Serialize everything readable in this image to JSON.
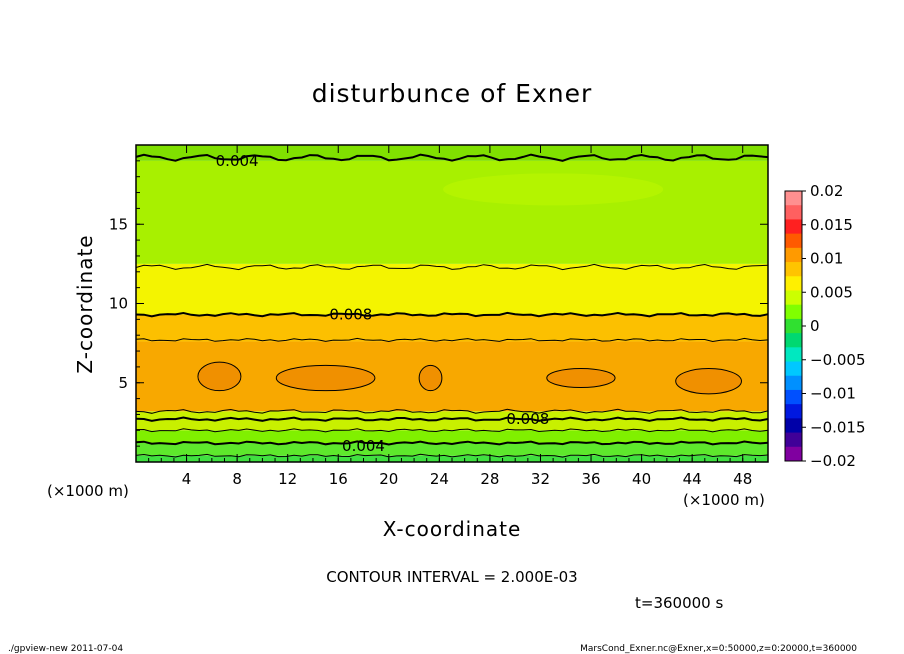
{
  "chart_data": {
    "type": "heatmap",
    "title": "disturbunce of Exner",
    "xlabel": "X-coordinate",
    "ylabel": "Z-coordinate",
    "x_unit": "(×1000 m)",
    "y_unit": "(×1000 m)",
    "xlim": [
      0,
      50
    ],
    "ylim": [
      0,
      20
    ],
    "x_ticks": [
      4,
      8,
      12,
      16,
      20,
      24,
      28,
      32,
      36,
      40,
      44,
      48
    ],
    "y_ticks": [
      5,
      10,
      15
    ],
    "colorbar": {
      "ticks": [
        "0.02",
        "0.015",
        "0.01",
        "0.005",
        "0",
        "−0.005",
        "−0.01",
        "−0.015",
        "−0.02"
      ],
      "levels": [
        0.02,
        0.015,
        0.01,
        0.005,
        0,
        -0.005,
        -0.01,
        -0.015,
        -0.02
      ],
      "colors": [
        "#ff9090",
        "#ff6060",
        "#ff2020",
        "#ff5a00",
        "#ff9a00",
        "#ffc400",
        "#fff000",
        "#ccff00",
        "#80ff00",
        "#30e030",
        "#00d870",
        "#00e8c0",
        "#00c8ff",
        "#0090ff",
        "#0050ff",
        "#0018e0",
        "#0000a8",
        "#400098",
        "#8000a0"
      ]
    },
    "bands": [
      {
        "z": [
          0.0,
          0.4
        ],
        "value": 0.002,
        "color": "#40e040"
      },
      {
        "z": [
          0.4,
          1.2
        ],
        "value": 0.003,
        "color": "#5ee82c"
      },
      {
        "z": [
          1.2,
          2.0
        ],
        "value": 0.004,
        "color": "#80f000"
      },
      {
        "z": [
          2.0,
          3.2
        ],
        "value": 0.007,
        "color": "#c8f000"
      },
      {
        "z": [
          3.2,
          7.6
        ],
        "value": 0.009,
        "color": "#f8a800"
      },
      {
        "z": [
          7.6,
          9.3
        ],
        "value": 0.0085,
        "color": "#fcc000"
      },
      {
        "z": [
          9.3,
          12.5
        ],
        "value": 0.007,
        "color": "#f4f400"
      },
      {
        "z": [
          12.5,
          19.0
        ],
        "value": 0.005,
        "color": "#a8f000"
      },
      {
        "z": [
          19.0,
          20.0
        ],
        "value": 0.004,
        "color": "#80e000"
      }
    ],
    "contour_labels": [
      {
        "text": "0.004",
        "x": 8,
        "z": 19
      },
      {
        "text": "0.008",
        "x": 17,
        "z": 9.3
      },
      {
        "text": "0.008",
        "x": 31,
        "z": 2.7
      },
      {
        "text": "0.004",
        "x": 18,
        "z": 1.0
      }
    ],
    "contour_interval_text": "CONTOUR INTERVAL = 2.000E-03",
    "time_text": "t=360000 s"
  },
  "footer": {
    "left": "./gpview-new   2011-07-04",
    "right": "MarsCond_Exner.nc@Exner,x=0:50000,z=0:20000,t=360000"
  },
  "colors": {
    "contour": "#000000",
    "max_region": "#f09000"
  }
}
